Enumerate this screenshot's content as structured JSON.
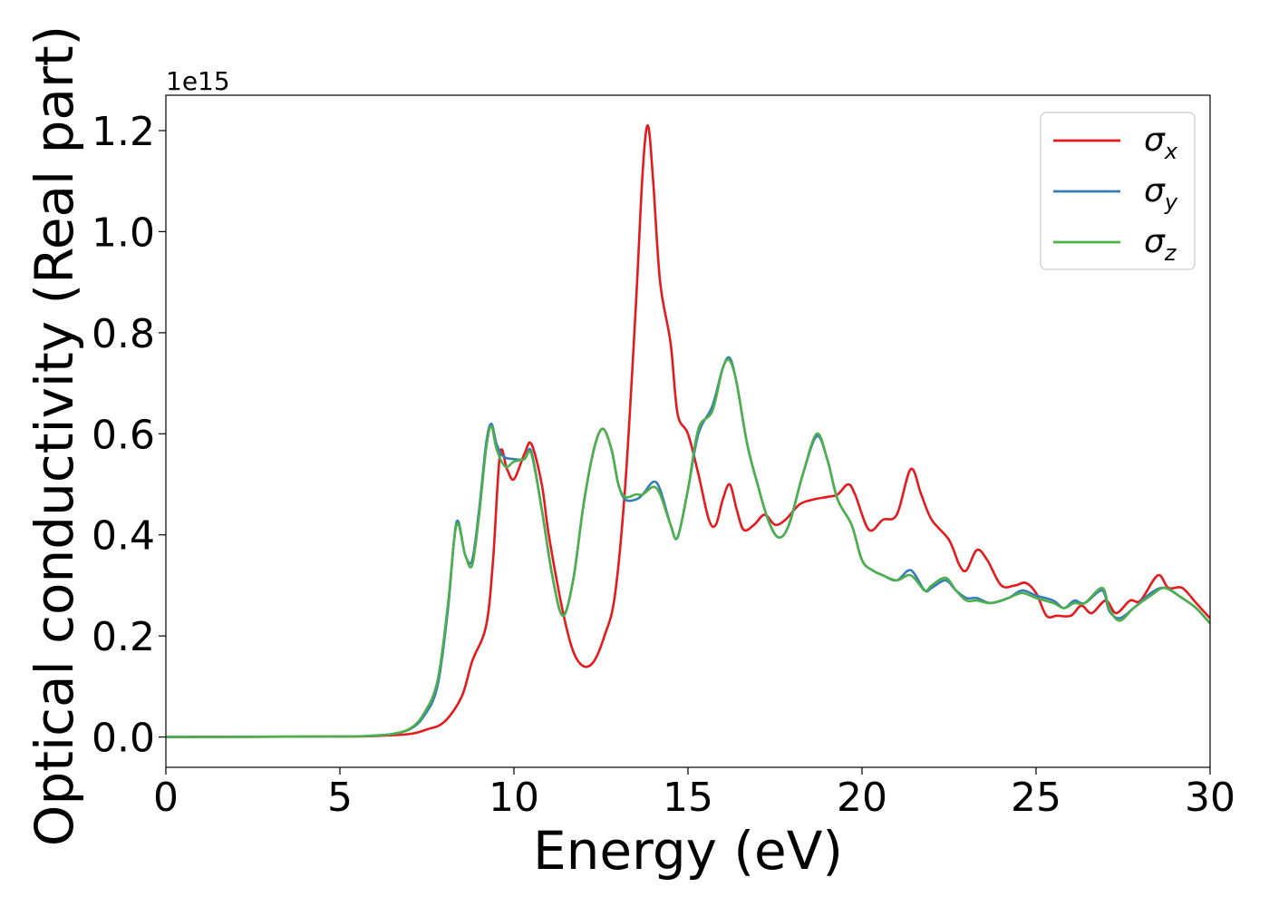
{
  "chart_data": {
    "type": "line",
    "xlabel": "Energy (eV)",
    "ylabel": "Optical conductivity (Real part)",
    "y_offset_label": "1e15",
    "xlim": [
      0,
      30
    ],
    "ylim": [
      -0.06,
      1.27
    ],
    "x_ticks": [
      0,
      5,
      10,
      15,
      20,
      25,
      30
    ],
    "x_tick_labels": [
      "0",
      "5",
      "10",
      "15",
      "20",
      "25",
      "30"
    ],
    "y_ticks": [
      0.0,
      0.2,
      0.4,
      0.6,
      0.8,
      1.0,
      1.2
    ],
    "y_tick_labels": [
      "0.0",
      "0.2",
      "0.4",
      "0.6",
      "0.8",
      "1.0",
      "1.2"
    ],
    "grid": false,
    "legend_position": "top-right",
    "series": [
      {
        "name": "σx",
        "symbol": "σ",
        "subscript": "x",
        "color": "#e41a1c",
        "points": [
          [
            0,
            0
          ],
          [
            5,
            0.001
          ],
          [
            6,
            0.002
          ],
          [
            7,
            0.006
          ],
          [
            7.5,
            0.015
          ],
          [
            8,
            0.03
          ],
          [
            8.5,
            0.08
          ],
          [
            8.8,
            0.15
          ],
          [
            9.2,
            0.22
          ],
          [
            9.4,
            0.35
          ],
          [
            9.6,
            0.56
          ],
          [
            9.8,
            0.53
          ],
          [
            10.0,
            0.51
          ],
          [
            10.3,
            0.56
          ],
          [
            10.5,
            0.58
          ],
          [
            10.8,
            0.5
          ],
          [
            11.0,
            0.4
          ],
          [
            11.4,
            0.25
          ],
          [
            11.7,
            0.17
          ],
          [
            12.0,
            0.14
          ],
          [
            12.3,
            0.15
          ],
          [
            12.6,
            0.2
          ],
          [
            12.9,
            0.28
          ],
          [
            13.2,
            0.5
          ],
          [
            13.5,
            0.85
          ],
          [
            13.7,
            1.12
          ],
          [
            13.85,
            1.21
          ],
          [
            14.0,
            1.1
          ],
          [
            14.2,
            0.9
          ],
          [
            14.5,
            0.78
          ],
          [
            14.7,
            0.64
          ],
          [
            15.0,
            0.6
          ],
          [
            15.3,
            0.52
          ],
          [
            15.6,
            0.43
          ],
          [
            15.8,
            0.42
          ],
          [
            16.0,
            0.47
          ],
          [
            16.2,
            0.5
          ],
          [
            16.4,
            0.45
          ],
          [
            16.6,
            0.41
          ],
          [
            16.9,
            0.42
          ],
          [
            17.2,
            0.44
          ],
          [
            17.5,
            0.42
          ],
          [
            17.8,
            0.43
          ],
          [
            18.2,
            0.46
          ],
          [
            18.6,
            0.47
          ],
          [
            19.0,
            0.475
          ],
          [
            19.3,
            0.48
          ],
          [
            19.6,
            0.5
          ],
          [
            19.8,
            0.48
          ],
          [
            20.2,
            0.41
          ],
          [
            20.6,
            0.43
          ],
          [
            21.0,
            0.44
          ],
          [
            21.4,
            0.53
          ],
          [
            21.7,
            0.48
          ],
          [
            22.0,
            0.43
          ],
          [
            22.5,
            0.39
          ],
          [
            22.8,
            0.34
          ],
          [
            23.0,
            0.33
          ],
          [
            23.3,
            0.37
          ],
          [
            23.6,
            0.35
          ],
          [
            24.0,
            0.3
          ],
          [
            24.4,
            0.3
          ],
          [
            24.7,
            0.305
          ],
          [
            25.0,
            0.285
          ],
          [
            25.3,
            0.24
          ],
          [
            25.6,
            0.24
          ],
          [
            26.0,
            0.24
          ],
          [
            26.3,
            0.26
          ],
          [
            26.6,
            0.245
          ],
          [
            27.0,
            0.27
          ],
          [
            27.3,
            0.245
          ],
          [
            27.7,
            0.27
          ],
          [
            28.0,
            0.27
          ],
          [
            28.5,
            0.32
          ],
          [
            28.8,
            0.295
          ],
          [
            29.2,
            0.295
          ],
          [
            29.6,
            0.265
          ],
          [
            30.0,
            0.235
          ]
        ]
      },
      {
        "name": "σy",
        "symbol": "σ",
        "subscript": "y",
        "color": "#377eb8",
        "points": [
          [
            0,
            0
          ],
          [
            5,
            0.001
          ],
          [
            6,
            0.003
          ],
          [
            6.5,
            0.006
          ],
          [
            7.0,
            0.015
          ],
          [
            7.4,
            0.04
          ],
          [
            7.8,
            0.1
          ],
          [
            8.1,
            0.25
          ],
          [
            8.35,
            0.425
          ],
          [
            8.6,
            0.36
          ],
          [
            8.8,
            0.35
          ],
          [
            9.0,
            0.45
          ],
          [
            9.2,
            0.58
          ],
          [
            9.35,
            0.62
          ],
          [
            9.5,
            0.58
          ],
          [
            9.7,
            0.555
          ],
          [
            10.0,
            0.55
          ],
          [
            10.3,
            0.55
          ],
          [
            10.5,
            0.565
          ],
          [
            10.8,
            0.45
          ],
          [
            11.1,
            0.32
          ],
          [
            11.4,
            0.24
          ],
          [
            11.7,
            0.31
          ],
          [
            12.0,
            0.46
          ],
          [
            12.3,
            0.57
          ],
          [
            12.55,
            0.61
          ],
          [
            12.8,
            0.57
          ],
          [
            13.0,
            0.5
          ],
          [
            13.2,
            0.47
          ],
          [
            13.5,
            0.47
          ],
          [
            13.7,
            0.48
          ],
          [
            14.0,
            0.505
          ],
          [
            14.2,
            0.49
          ],
          [
            14.5,
            0.42
          ],
          [
            14.7,
            0.395
          ],
          [
            15.0,
            0.49
          ],
          [
            15.3,
            0.6
          ],
          [
            15.7,
            0.655
          ],
          [
            16.0,
            0.73
          ],
          [
            16.2,
            0.75
          ],
          [
            16.4,
            0.7
          ],
          [
            16.7,
            0.58
          ],
          [
            17.0,
            0.5
          ],
          [
            17.3,
            0.43
          ],
          [
            17.6,
            0.395
          ],
          [
            17.9,
            0.42
          ],
          [
            18.3,
            0.52
          ],
          [
            18.7,
            0.595
          ],
          [
            19.0,
            0.55
          ],
          [
            19.3,
            0.47
          ],
          [
            19.7,
            0.42
          ],
          [
            20.0,
            0.35
          ],
          [
            20.3,
            0.33
          ],
          [
            20.6,
            0.32
          ],
          [
            21.0,
            0.31
          ],
          [
            21.4,
            0.33
          ],
          [
            21.8,
            0.29
          ],
          [
            22.0,
            0.295
          ],
          [
            22.4,
            0.31
          ],
          [
            22.7,
            0.29
          ],
          [
            23.0,
            0.275
          ],
          [
            23.3,
            0.275
          ],
          [
            23.7,
            0.265
          ],
          [
            24.2,
            0.275
          ],
          [
            24.6,
            0.29
          ],
          [
            25.0,
            0.28
          ],
          [
            25.5,
            0.27
          ],
          [
            25.8,
            0.255
          ],
          [
            26.1,
            0.27
          ],
          [
            26.4,
            0.265
          ],
          [
            26.9,
            0.29
          ],
          [
            27.1,
            0.25
          ],
          [
            27.4,
            0.235
          ],
          [
            27.8,
            0.255
          ],
          [
            28.3,
            0.285
          ],
          [
            28.7,
            0.295
          ],
          [
            29.2,
            0.275
          ],
          [
            29.6,
            0.255
          ],
          [
            30.0,
            0.225
          ]
        ]
      },
      {
        "name": "σz",
        "symbol": "σ",
        "subscript": "z",
        "color": "#4daf4a",
        "points": [
          [
            0,
            0
          ],
          [
            5,
            0.001
          ],
          [
            6,
            0.003
          ],
          [
            6.5,
            0.006
          ],
          [
            7.0,
            0.016
          ],
          [
            7.4,
            0.045
          ],
          [
            7.8,
            0.11
          ],
          [
            8.1,
            0.26
          ],
          [
            8.35,
            0.42
          ],
          [
            8.6,
            0.36
          ],
          [
            8.8,
            0.34
          ],
          [
            9.0,
            0.44
          ],
          [
            9.2,
            0.57
          ],
          [
            9.35,
            0.615
          ],
          [
            9.5,
            0.57
          ],
          [
            9.75,
            0.535
          ],
          [
            10.0,
            0.545
          ],
          [
            10.3,
            0.55
          ],
          [
            10.5,
            0.56
          ],
          [
            10.8,
            0.45
          ],
          [
            11.1,
            0.32
          ],
          [
            11.4,
            0.24
          ],
          [
            11.7,
            0.31
          ],
          [
            12.0,
            0.46
          ],
          [
            12.3,
            0.57
          ],
          [
            12.55,
            0.61
          ],
          [
            12.8,
            0.57
          ],
          [
            13.0,
            0.5
          ],
          [
            13.2,
            0.475
          ],
          [
            13.5,
            0.48
          ],
          [
            13.7,
            0.48
          ],
          [
            14.0,
            0.495
          ],
          [
            14.2,
            0.48
          ],
          [
            14.5,
            0.42
          ],
          [
            14.7,
            0.395
          ],
          [
            15.0,
            0.49
          ],
          [
            15.3,
            0.61
          ],
          [
            15.7,
            0.645
          ],
          [
            16.0,
            0.73
          ],
          [
            16.2,
            0.745
          ],
          [
            16.4,
            0.7
          ],
          [
            16.7,
            0.58
          ],
          [
            17.0,
            0.5
          ],
          [
            17.3,
            0.43
          ],
          [
            17.6,
            0.395
          ],
          [
            17.9,
            0.42
          ],
          [
            18.3,
            0.52
          ],
          [
            18.7,
            0.6
          ],
          [
            19.0,
            0.55
          ],
          [
            19.3,
            0.47
          ],
          [
            19.7,
            0.42
          ],
          [
            20.0,
            0.35
          ],
          [
            20.3,
            0.33
          ],
          [
            20.6,
            0.32
          ],
          [
            21.0,
            0.31
          ],
          [
            21.4,
            0.32
          ],
          [
            21.8,
            0.29
          ],
          [
            22.0,
            0.3
          ],
          [
            22.4,
            0.315
          ],
          [
            22.7,
            0.29
          ],
          [
            23.0,
            0.27
          ],
          [
            23.3,
            0.27
          ],
          [
            23.7,
            0.265
          ],
          [
            24.2,
            0.275
          ],
          [
            24.6,
            0.285
          ],
          [
            25.0,
            0.275
          ],
          [
            25.5,
            0.265
          ],
          [
            25.8,
            0.255
          ],
          [
            26.1,
            0.265
          ],
          [
            26.4,
            0.265
          ],
          [
            26.9,
            0.295
          ],
          [
            27.1,
            0.255
          ],
          [
            27.4,
            0.23
          ],
          [
            27.8,
            0.255
          ],
          [
            28.3,
            0.28
          ],
          [
            28.7,
            0.295
          ],
          [
            29.2,
            0.275
          ],
          [
            29.6,
            0.255
          ],
          [
            30.0,
            0.225
          ]
        ]
      }
    ]
  }
}
